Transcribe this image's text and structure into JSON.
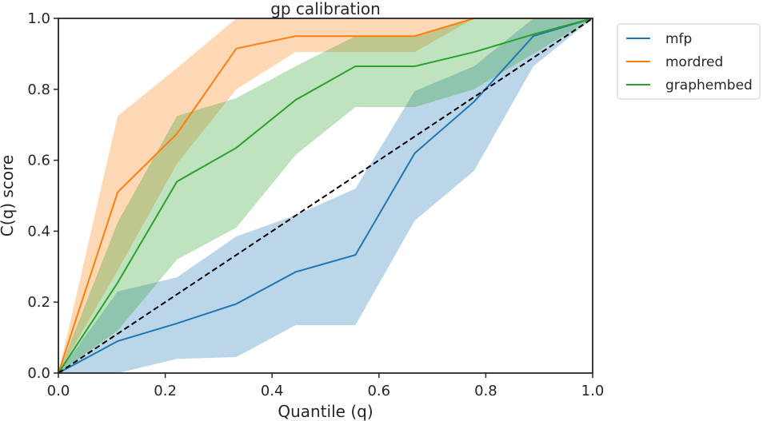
{
  "chart_data": {
    "type": "line",
    "title": "gp calibration",
    "xlabel": "Quantile (q)",
    "ylabel": "C(q) score",
    "xlim": [
      0.0,
      1.0
    ],
    "ylim": [
      0.0,
      1.0
    ],
    "xticks": [
      "0.0",
      "0.2",
      "0.4",
      "0.6",
      "0.8",
      "1.0"
    ],
    "yticks": [
      "0.0",
      "0.2",
      "0.4",
      "0.6",
      "0.8",
      "1.0"
    ],
    "grid": false,
    "legend_position": "outside-right",
    "x": [
      0.0,
      0.111,
      0.222,
      0.333,
      0.444,
      0.556,
      0.667,
      0.778,
      0.889,
      1.0
    ],
    "series": [
      {
        "name": "mfp",
        "color": "#1f77b4",
        "values": [
          0.0,
          0.09,
          0.14,
          0.195,
          0.285,
          0.333,
          0.62,
          0.765,
          0.95,
          1.0
        ],
        "lower": [
          0.0,
          0.0,
          0.04,
          0.045,
          0.135,
          0.135,
          0.43,
          0.57,
          0.865,
          1.0
        ],
        "upper": [
          0.0,
          0.23,
          0.27,
          0.385,
          0.445,
          0.52,
          0.795,
          0.865,
          1.0,
          1.0
        ]
      },
      {
        "name": "mordred",
        "color": "#ff7f0e",
        "values": [
          0.0,
          0.51,
          0.675,
          0.915,
          0.95,
          0.95,
          0.95,
          1.0,
          1.0,
          1.0
        ],
        "lower": [
          0.0,
          0.29,
          0.59,
          0.8,
          0.905,
          0.905,
          0.905,
          1.0,
          1.0,
          1.0
        ],
        "upper": [
          0.0,
          0.725,
          0.86,
          1.0,
          1.0,
          1.0,
          1.0,
          1.0,
          1.0,
          1.0
        ]
      },
      {
        "name": "graphembed",
        "color": "#2ca02c",
        "values": [
          0.0,
          0.255,
          0.54,
          0.635,
          0.77,
          0.865,
          0.865,
          0.905,
          0.955,
          1.0
        ],
        "lower": [
          0.0,
          0.12,
          0.32,
          0.41,
          0.615,
          0.75,
          0.75,
          0.8,
          0.9,
          1.0
        ],
        "upper": [
          0.0,
          0.425,
          0.725,
          0.775,
          0.865,
          0.95,
          0.95,
          1.0,
          1.0,
          1.0
        ]
      }
    ],
    "reference_line": {
      "style": "dashed",
      "color": "#000000",
      "from": [
        0.0,
        0.0
      ],
      "to": [
        1.0,
        1.0
      ]
    }
  }
}
